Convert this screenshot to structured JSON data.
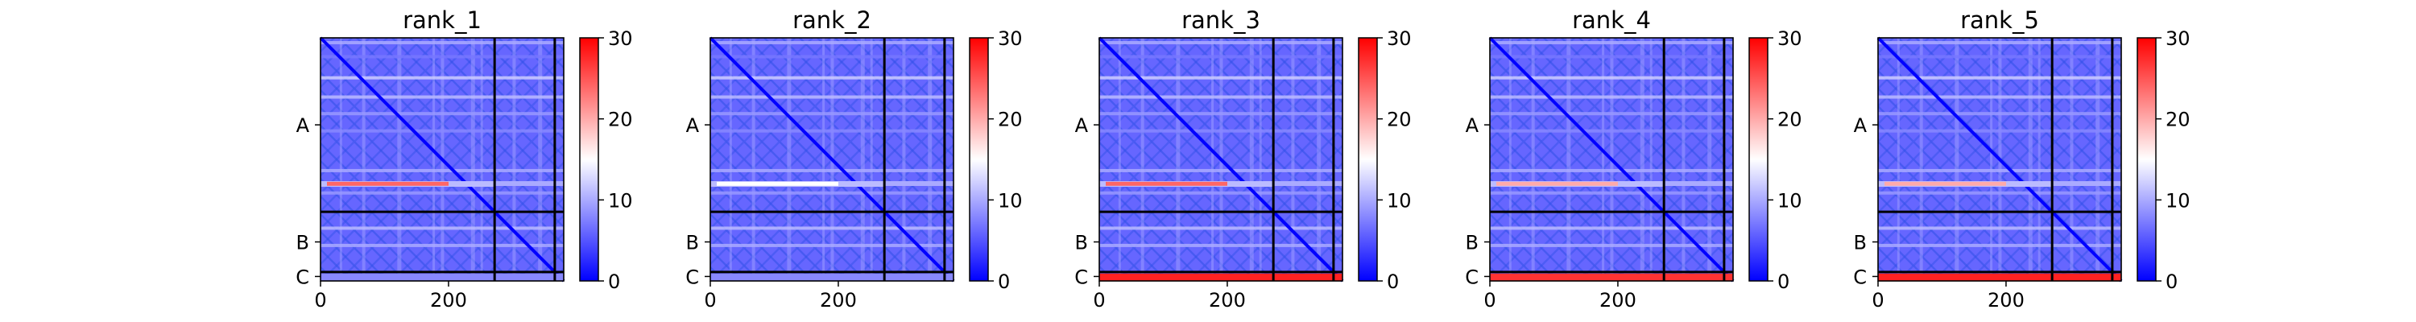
{
  "chart_data": [
    {
      "type": "heatmap",
      "title": "rank_1",
      "x_ticks": [
        0,
        200
      ],
      "xlim": [
        0,
        380
      ],
      "y_ticks": [
        "A",
        "B",
        "C"
      ],
      "chain_boundaries": [
        272,
        366
      ],
      "colorbar": {
        "ticks": [
          0,
          10,
          20,
          30
        ],
        "range": [
          0,
          30
        ],
        "colormap": [
          "#0000ff",
          "#ffffff",
          "#ff0000"
        ]
      },
      "hot_row_value": 24,
      "c_row_value": 8
    },
    {
      "type": "heatmap",
      "title": "rank_2",
      "x_ticks": [
        0,
        200
      ],
      "xlim": [
        0,
        380
      ],
      "y_ticks": [
        "A",
        "B",
        "C"
      ],
      "chain_boundaries": [
        272,
        366
      ],
      "colorbar": {
        "ticks": [
          0,
          10,
          20,
          30
        ],
        "range": [
          0,
          30
        ],
        "colormap": [
          "#0000ff",
          "#ffffff",
          "#ff0000"
        ]
      },
      "hot_row_value": 15,
      "c_row_value": 8
    },
    {
      "type": "heatmap",
      "title": "rank_3",
      "x_ticks": [
        0,
        200
      ],
      "xlim": [
        0,
        380
      ],
      "y_ticks": [
        "A",
        "B",
        "C"
      ],
      "chain_boundaries": [
        272,
        366
      ],
      "colorbar": {
        "ticks": [
          0,
          10,
          20,
          30
        ],
        "range": [
          0,
          30
        ],
        "colormap": [
          "#0000ff",
          "#ffffff",
          "#ff0000"
        ]
      },
      "hot_row_value": 24,
      "c_row_value": 28
    },
    {
      "type": "heatmap",
      "title": "rank_4",
      "x_ticks": [
        0,
        200
      ],
      "xlim": [
        0,
        380
      ],
      "y_ticks": [
        "A",
        "B",
        "C"
      ],
      "chain_boundaries": [
        272,
        366
      ],
      "colorbar": {
        "ticks": [
          0,
          10,
          20,
          30
        ],
        "range": [
          0,
          30
        ],
        "colormap": [
          "#0000ff",
          "#ffffff",
          "#ff0000"
        ]
      },
      "hot_row_value": 20,
      "c_row_value": 27
    },
    {
      "type": "heatmap",
      "title": "rank_5",
      "x_ticks": [
        0,
        200
      ],
      "xlim": [
        0,
        380
      ],
      "y_ticks": [
        "A",
        "B",
        "C"
      ],
      "chain_boundaries": [
        272,
        366
      ],
      "colorbar": {
        "ticks": [
          0,
          10,
          20,
          30
        ],
        "range": [
          0,
          30
        ],
        "colormap": [
          "#0000ff",
          "#ffffff",
          "#ff0000"
        ]
      },
      "hot_row_value": 20,
      "c_row_value": 28
    }
  ]
}
